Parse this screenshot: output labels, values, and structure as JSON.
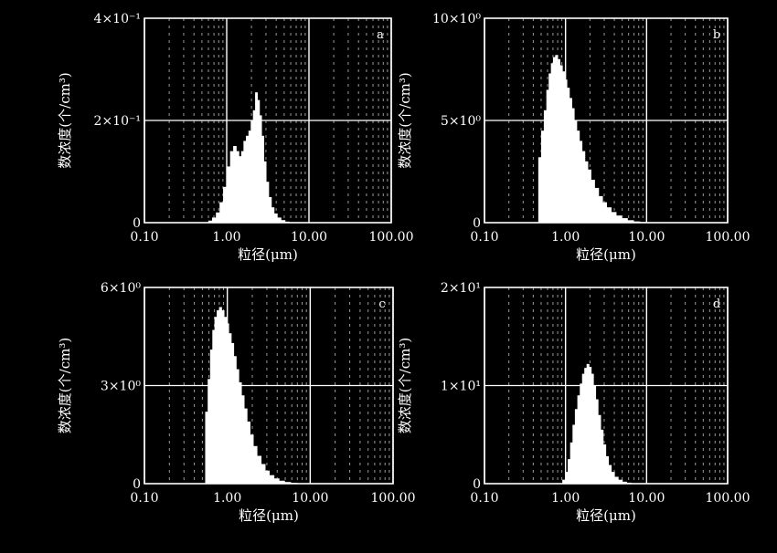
{
  "chart_data": [
    {
      "type": "bar",
      "panel_label": "a",
      "xlabel": "粒径(μm)",
      "ylabel": "数浓度(个/cm³)",
      "x_scale": "log",
      "xlim": [
        0.1,
        100
      ],
      "x_ticks": [
        "0.10",
        "1.00",
        "10.00",
        "100.00"
      ],
      "ylim": [
        0,
        0.4
      ],
      "y_ticks": [
        "0",
        "2×10⁻¹",
        "4×10⁻¹"
      ],
      "grid": true,
      "x": [
        0.63,
        0.7,
        0.78,
        0.86,
        0.95,
        1.05,
        1.15,
        1.25,
        1.35,
        1.45,
        1.55,
        1.65,
        1.78,
        1.9,
        2.02,
        2.15,
        2.28,
        2.42,
        2.56,
        2.72,
        2.9,
        3.1,
        3.35,
        3.6,
        3.9,
        4.3,
        4.8,
        5.4
      ],
      "values": [
        0.004,
        0.01,
        0.02,
        0.04,
        0.07,
        0.11,
        0.14,
        0.15,
        0.14,
        0.13,
        0.14,
        0.16,
        0.17,
        0.18,
        0.2,
        0.22,
        0.255,
        0.24,
        0.21,
        0.17,
        0.12,
        0.08,
        0.05,
        0.03,
        0.018,
        0.01,
        0.005,
        0.002
      ]
    },
    {
      "type": "bar",
      "panel_label": "b",
      "xlabel": "粒径(μm)",
      "ylabel": "数浓度(个/cm³)",
      "x_scale": "log",
      "xlim": [
        0.1,
        100
      ],
      "x_ticks": [
        "0.10",
        "1.00",
        "10.00",
        "100.00"
      ],
      "ylim": [
        0,
        10
      ],
      "y_ticks": [
        "0",
        "5×10⁰",
        "10×10⁰"
      ],
      "grid": true,
      "x": [
        0.48,
        0.52,
        0.56,
        0.6,
        0.64,
        0.68,
        0.72,
        0.77,
        0.82,
        0.88,
        0.94,
        1.0,
        1.07,
        1.15,
        1.23,
        1.32,
        1.42,
        1.53,
        1.65,
        1.8,
        1.95,
        2.15,
        2.4,
        2.7,
        3.0,
        3.4,
        3.9,
        4.5,
        5.3,
        6.3,
        7.5,
        9.0
      ],
      "values": [
        3.2,
        4.5,
        5.5,
        6.5,
        7.3,
        7.8,
        8.1,
        8.2,
        8.0,
        7.7,
        7.4,
        7.0,
        6.6,
        6.1,
        5.6,
        5.0,
        4.5,
        4.0,
        3.5,
        3.0,
        2.6,
        2.1,
        1.7,
        1.3,
        1.0,
        0.75,
        0.52,
        0.35,
        0.22,
        0.12,
        0.06,
        0.03
      ]
    },
    {
      "type": "bar",
      "panel_label": "c",
      "xlabel": "粒径(μm)",
      "ylabel": "数浓度(个/cm³)",
      "x_scale": "log",
      "xlim": [
        0.1,
        100
      ],
      "x_ticks": [
        "0.10",
        "1.00",
        "10.00",
        "100.00"
      ],
      "ylim": [
        0,
        6
      ],
      "y_ticks": [
        "0",
        "3×10⁰",
        "6×10⁰"
      ],
      "grid": true,
      "x": [
        0.56,
        0.6,
        0.64,
        0.68,
        0.72,
        0.77,
        0.82,
        0.88,
        0.94,
        1.0,
        1.07,
        1.15,
        1.23,
        1.32,
        1.42,
        1.53,
        1.65,
        1.8,
        1.95,
        2.15,
        2.4,
        2.7,
        3.0,
        3.4,
        3.9,
        4.5,
        5.3,
        6.3,
        7.5
      ],
      "values": [
        2.2,
        3.2,
        4.1,
        4.7,
        5.1,
        5.3,
        5.4,
        5.3,
        5.1,
        4.9,
        4.6,
        4.3,
        3.9,
        3.5,
        3.1,
        2.7,
        2.3,
        1.9,
        1.5,
        1.15,
        0.85,
        0.6,
        0.4,
        0.26,
        0.16,
        0.09,
        0.05,
        0.025,
        0.01
      ]
    },
    {
      "type": "bar",
      "panel_label": "d",
      "xlabel": "粒径(μm)",
      "ylabel": "数浓度(个/cm³)",
      "x_scale": "log",
      "xlim": [
        0.1,
        100
      ],
      "x_ticks": [
        "0.10",
        "1.00",
        "10.00",
        "100.00"
      ],
      "ylim": [
        0,
        20
      ],
      "y_ticks": [
        "0",
        "1×10¹",
        "2×10¹"
      ],
      "grid": true,
      "x": [
        0.95,
        1.03,
        1.1,
        1.18,
        1.26,
        1.35,
        1.45,
        1.55,
        1.65,
        1.76,
        1.88,
        2.0,
        2.13,
        2.27,
        2.42,
        2.6,
        2.8,
        3.0,
        3.25,
        3.5,
        3.8,
        4.2,
        4.7,
        5.3,
        6.0
      ],
      "values": [
        0.4,
        1.2,
        2.5,
        4.2,
        6.0,
        7.6,
        9.0,
        10.2,
        11.2,
        11.8,
        12.2,
        11.9,
        11.2,
        10.0,
        8.6,
        7.0,
        5.5,
        4.0,
        2.8,
        1.9,
        1.2,
        0.7,
        0.4,
        0.2,
        0.1
      ]
    }
  ]
}
